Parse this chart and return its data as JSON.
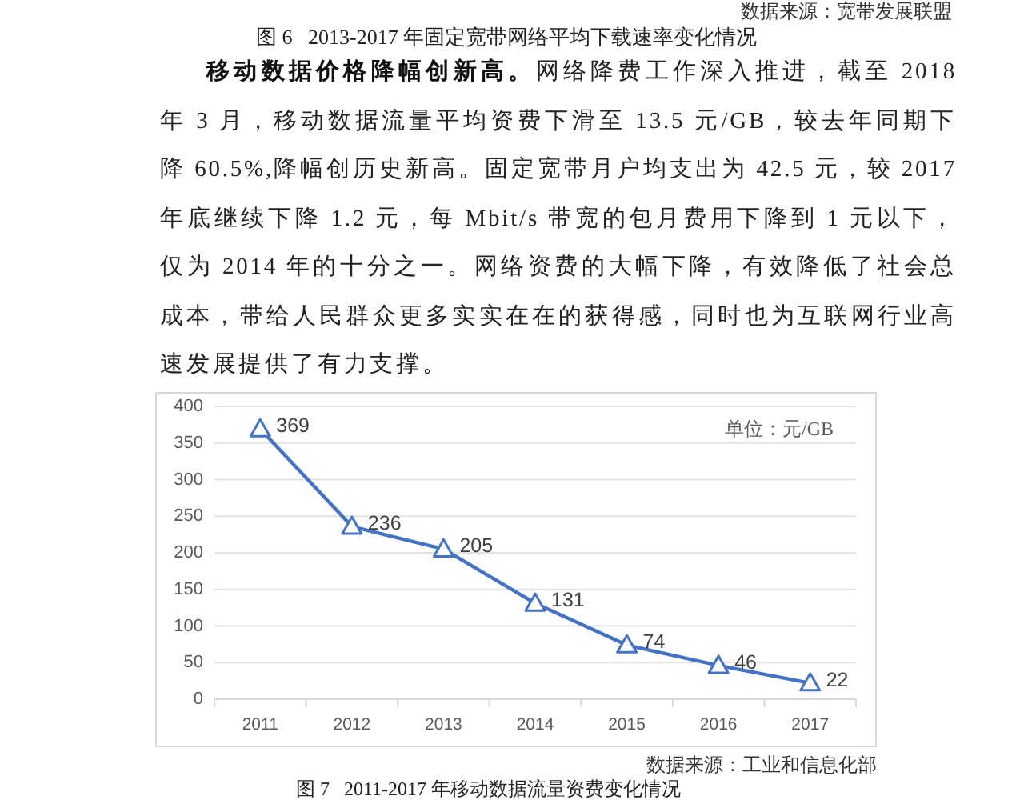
{
  "chart_data": {
    "type": "line",
    "title": "图 7   2011-2017 年移动数据流量资费变化情况",
    "categories": [
      "2011",
      "2012",
      "2013",
      "2014",
      "2015",
      "2016",
      "2017"
    ],
    "values": [
      369,
      236,
      205,
      131,
      74,
      46,
      22
    ],
    "color": "#4472c4",
    "ylim": [
      0,
      400
    ],
    "yticks": [
      0,
      50,
      100,
      150,
      200,
      250,
      300,
      350,
      400
    ],
    "grid": "y",
    "marker": "triangle",
    "line_style": "solid",
    "data_labels": true,
    "annotations": [
      "数据来源：宽带发展联盟",
      "图 6   2013-2017 年固定宽带网络平均下载速率变化情况",
      "移动数据价格降幅创新高。",
      "网络降费工作深入推进，截至 2018 年 3 月，移动数据流量平均资费下滑至 13.5 元/GB，较去年同期下降 60.5%,降幅创历史新高。固定宽带月户均支出为 42.5 元，较 2017 年底继续下降 1.2 元，每 Mbit/s 带宽的包月费用下降到 1 元以下，仅为 2014 年的十分之一。网络资费的大幅下降，有效降低了社会总成本，带给人民群众更多实实在在的获得感，同时也为互联网行业高速发展提供了有力支撑。",
      "单位：元/GB",
      "数据来源：工业和信息化部"
    ]
  }
}
